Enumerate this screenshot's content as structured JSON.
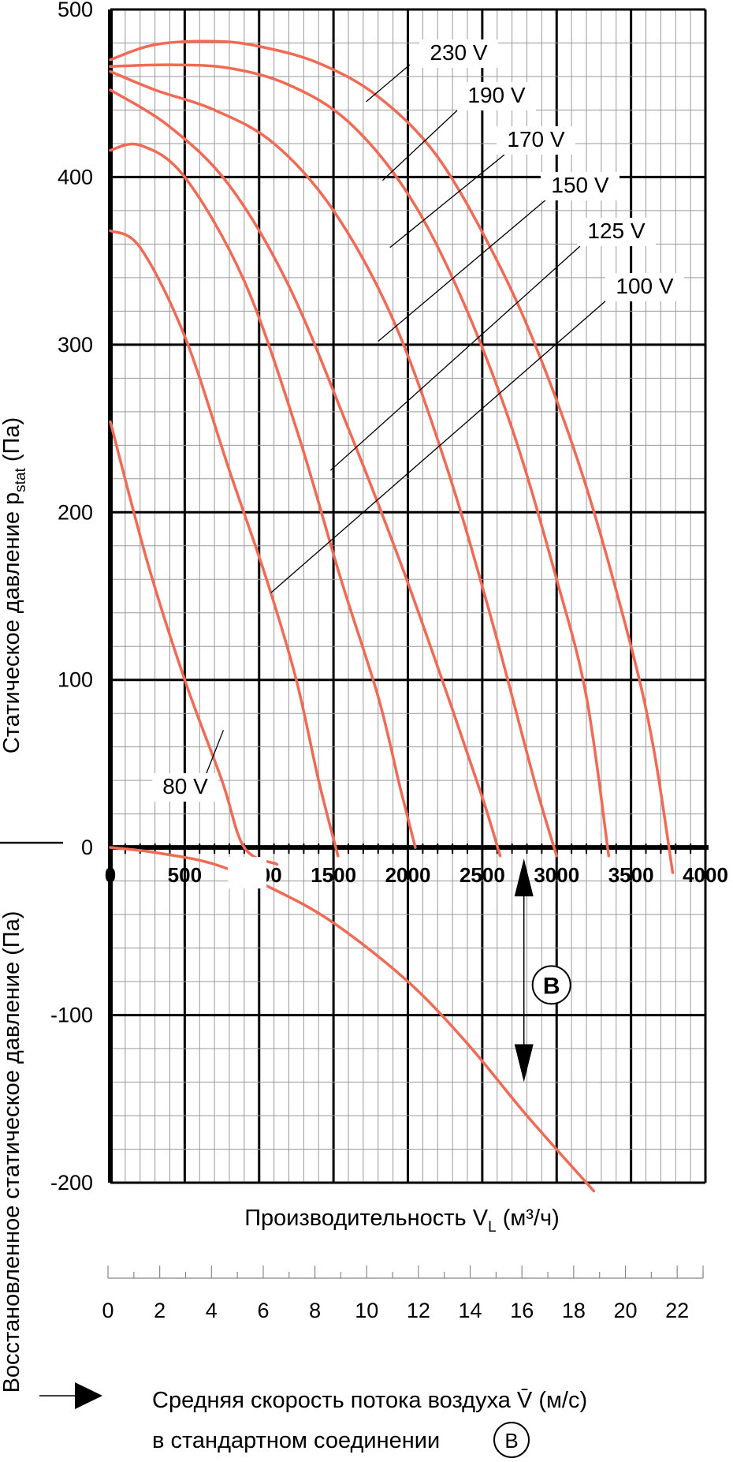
{
  "chart_data": {
    "type": "line",
    "title": "",
    "xlabel": "Производительность V",
    "xlabel_sub": "L",
    "xlabel_unit": " (м³/ч)",
    "ylabel_top": "Статическое давление p",
    "ylabel_top_sub": "stat",
    "ylabel_top_unit": " (Па)",
    "ylabel_bottom": "Восстановленное статическое давление (Па)",
    "xlim": [
      0,
      4000
    ],
    "ylim": [
      -200,
      500
    ],
    "x_ticks": [
      "0",
      "500",
      "1000",
      "1500",
      "2000",
      "2500",
      "3000",
      "3500",
      "4000"
    ],
    "y_ticks": [
      "-200",
      "-100",
      "0",
      "100",
      "200",
      "300",
      "400",
      "500"
    ],
    "x_tick_values": [
      0,
      500,
      1000,
      1500,
      2000,
      2500,
      3000,
      3500,
      4000
    ],
    "y_tick_values": [
      -200,
      -100,
      0,
      100,
      200,
      300,
      400,
      500
    ],
    "grid": true,
    "line_color": "#f06a55",
    "series": [
      {
        "name": "230 V",
        "points": [
          [
            0,
            470
          ],
          [
            300,
            479
          ],
          [
            700,
            481
          ],
          [
            1000,
            478
          ],
          [
            1400,
            468
          ],
          [
            1800,
            448
          ],
          [
            2200,
            412
          ],
          [
            2600,
            350
          ],
          [
            2900,
            290
          ],
          [
            3200,
            215
          ],
          [
            3500,
            120
          ],
          [
            3650,
            60
          ],
          [
            3780,
            -15
          ]
        ],
        "label_point": [
          1720,
          445
        ]
      },
      {
        "name": "190 V",
        "points": [
          [
            0,
            466
          ],
          [
            400,
            467
          ],
          [
            800,
            465
          ],
          [
            1200,
            455
          ],
          [
            1600,
            433
          ],
          [
            2000,
            390
          ],
          [
            2350,
            330
          ],
          [
            2700,
            250
          ],
          [
            3000,
            160
          ],
          [
            3200,
            90
          ],
          [
            3350,
            -5
          ]
        ],
        "label_point": [
          1830,
          398
        ]
      },
      {
        "name": "170 V",
        "points": [
          [
            0,
            463
          ],
          [
            300,
            452
          ],
          [
            700,
            440
          ],
          [
            1100,
            420
          ],
          [
            1500,
            380
          ],
          [
            1900,
            315
          ],
          [
            2250,
            230
          ],
          [
            2550,
            140
          ],
          [
            2850,
            40
          ],
          [
            3000,
            -5
          ]
        ],
        "label_point": [
          1880,
          358
        ]
      },
      {
        "name": "150 V",
        "points": [
          [
            0,
            452
          ],
          [
            400,
            430
          ],
          [
            800,
            395
          ],
          [
            1200,
            335
          ],
          [
            1600,
            250
          ],
          [
            1950,
            170
          ],
          [
            2250,
            95
          ],
          [
            2500,
            30
          ],
          [
            2620,
            -5
          ]
        ],
        "label_point": [
          1800,
          302
        ]
      },
      {
        "name": "125 V",
        "points": [
          [
            0,
            416
          ],
          [
            200,
            419
          ],
          [
            500,
            400
          ],
          [
            900,
            338
          ],
          [
            1250,
            250
          ],
          [
            1550,
            160
          ],
          [
            1800,
            90
          ],
          [
            1950,
            35
          ],
          [
            2050,
            0
          ]
        ],
        "label_point": [
          1480,
          225
        ]
      },
      {
        "name": "100 V",
        "points": [
          [
            0,
            368
          ],
          [
            200,
            358
          ],
          [
            500,
            305
          ],
          [
            800,
            225
          ],
          [
            1050,
            160
          ],
          [
            1250,
            100
          ],
          [
            1400,
            40
          ],
          [
            1530,
            -5
          ]
        ],
        "label_point": [
          1080,
          152
        ]
      },
      {
        "name": "80 V",
        "points": [
          [
            0,
            254
          ],
          [
            250,
            170
          ],
          [
            500,
            100
          ],
          [
            750,
            40
          ],
          [
            900,
            0
          ],
          [
            1120,
            -10
          ]
        ],
        "label_point": [
          760,
          70
        ]
      }
    ],
    "recovered_pressure": {
      "points": [
        [
          0,
          0
        ],
        [
          300,
          -3
        ],
        [
          700,
          -10
        ],
        [
          1100,
          -25
        ],
        [
          1500,
          -45
        ],
        [
          2000,
          -80
        ],
        [
          2400,
          -117
        ],
        [
          2800,
          -160
        ],
        [
          3250,
          -205
        ]
      ],
      "gap": [
        [
          790,
          1050
        ]
      ]
    },
    "marker_label": "B",
    "marker_x": 2780,
    "secondary_axis": {
      "label_line1": "Средняя скорость потока воздуха V̄ (м/с)",
      "label_line2": "в стандартном соединении",
      "label_marker": "B",
      "ticks": [
        "0",
        "2",
        "4",
        "6",
        "8",
        "10",
        "12",
        "14",
        "16",
        "18",
        "20",
        "22"
      ],
      "tick_values": [
        0,
        2,
        4,
        6,
        8,
        10,
        12,
        14,
        16,
        18,
        20,
        22
      ],
      "range": [
        0,
        23
      ]
    }
  }
}
